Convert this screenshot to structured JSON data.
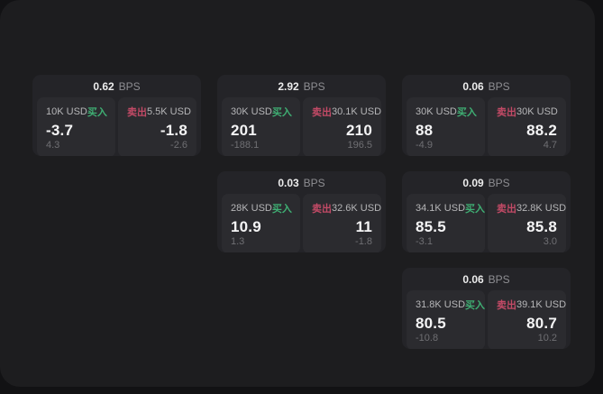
{
  "app": {
    "unit_label": "BPS",
    "buy_label": "买入",
    "sell_label": "卖出"
  },
  "colors": {
    "backdrop": "#121214",
    "panel_bg": "#1d1d1f",
    "card_bg": "#242428",
    "tile_bg": "#2b2b2f",
    "buy_green": "#3fae73",
    "sell_red": "#c24a66"
  },
  "cards": [
    {
      "row": 1,
      "col": 1,
      "bps": "0.62",
      "buy": {
        "notional": "10K USD",
        "price": "-3.7",
        "sub": "4.3"
      },
      "sell": {
        "notional": "5.5K USD",
        "price": "-1.8",
        "sub": "-2.6"
      }
    },
    {
      "row": 1,
      "col": 2,
      "bps": "2.92",
      "buy": {
        "notional": "30K USD",
        "price": "201",
        "sub": "-188.1"
      },
      "sell": {
        "notional": "30.1K USD",
        "price": "210",
        "sub": "196.5"
      }
    },
    {
      "row": 1,
      "col": 3,
      "bps": "0.06",
      "buy": {
        "notional": "30K USD",
        "price": "88",
        "sub": "-4.9"
      },
      "sell": {
        "notional": "30K USD",
        "price": "88.2",
        "sub": "4.7"
      }
    },
    {
      "row": 2,
      "col": 2,
      "bps": "0.03",
      "buy": {
        "notional": "28K USD",
        "price": "10.9",
        "sub": "1.3"
      },
      "sell": {
        "notional": "32.6K USD",
        "price": "11",
        "sub": "-1.8"
      }
    },
    {
      "row": 2,
      "col": 3,
      "bps": "0.09",
      "buy": {
        "notional": "34.1K USD",
        "price": "85.5",
        "sub": "-3.1"
      },
      "sell": {
        "notional": "32.8K USD",
        "price": "85.8",
        "sub": "3.0"
      }
    },
    {
      "row": 3,
      "col": 3,
      "bps": "0.06",
      "buy": {
        "notional": "31.8K USD",
        "price": "80.5",
        "sub": "-10.8"
      },
      "sell": {
        "notional": "39.1K USD",
        "price": "80.7",
        "sub": "10.2"
      }
    }
  ]
}
